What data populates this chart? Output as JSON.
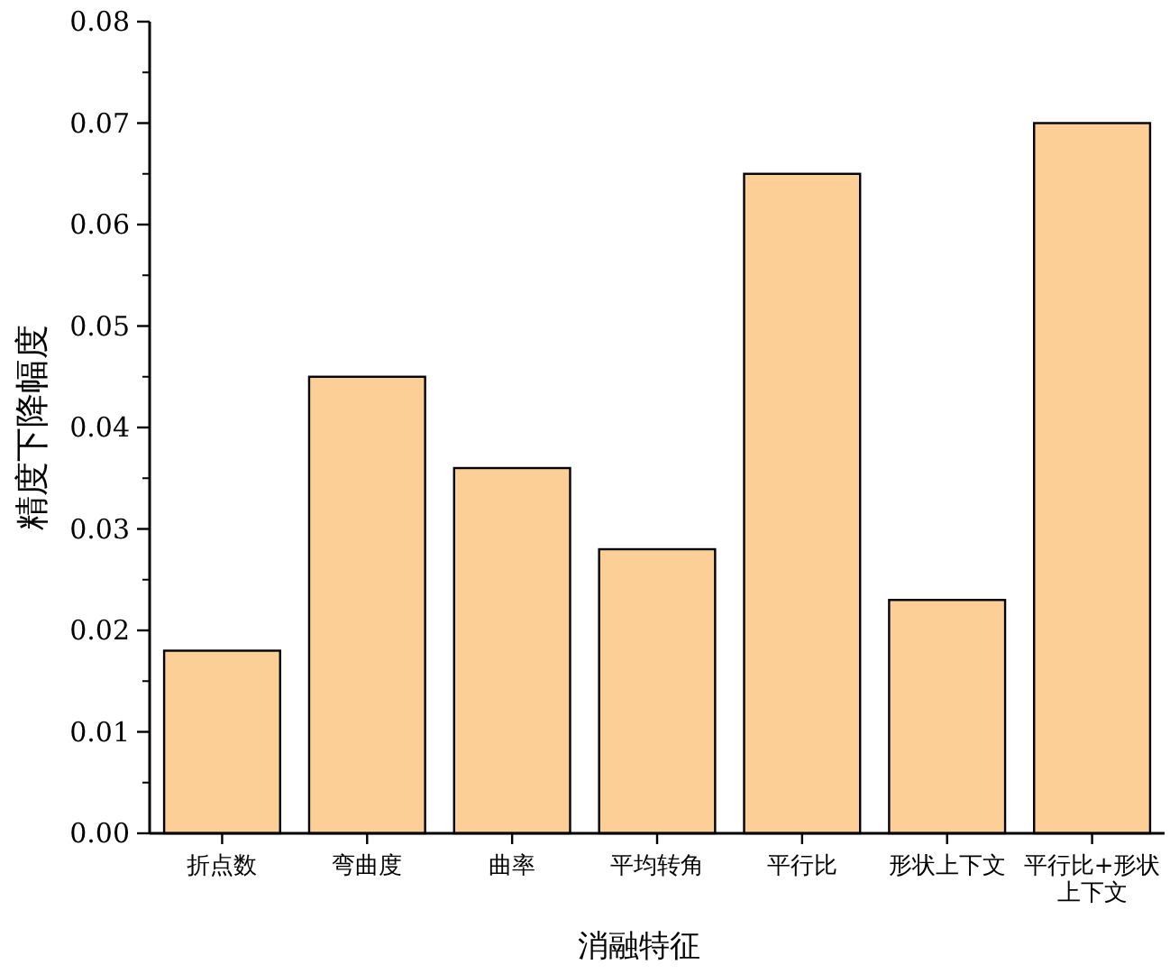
{
  "chart_data": {
    "type": "bar",
    "xlabel": "消融特征",
    "ylabel": "精度下降幅度",
    "categories": [
      "折点数",
      "弯曲度",
      "曲率",
      "平均转角",
      "平行比",
      "形状上下文",
      "平行比+形状上下文"
    ],
    "values": [
      0.018,
      0.045,
      0.036,
      0.028,
      0.065,
      0.023,
      0.07
    ],
    "color": "#fccf96",
    "ylim": [
      0,
      0.08
    ],
    "yticks": [
      {
        "value": 0,
        "label": "0.00"
      },
      0.01,
      0.02,
      0.03,
      0.04,
      0.05,
      0.06,
      0.07,
      0.08
    ],
    "grid": false
  }
}
